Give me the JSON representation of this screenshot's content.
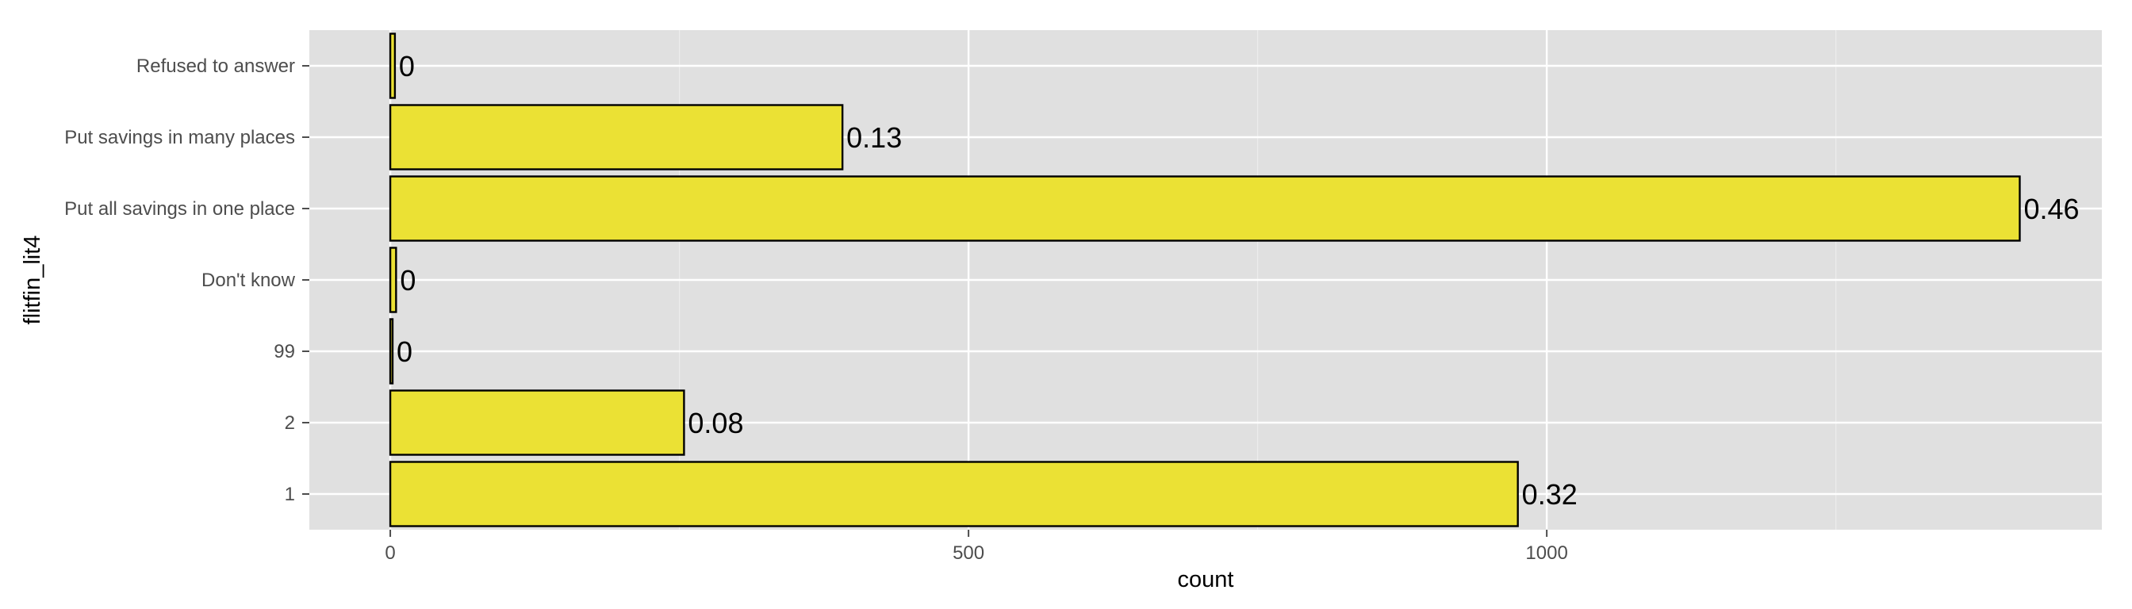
{
  "chart_data": {
    "type": "bar",
    "orientation": "horizontal",
    "xlabel": "count",
    "ylabel": "flitfin_lit4",
    "categories": [
      "1",
      "2",
      "99",
      "Don't know",
      "Put all savings in one place",
      "Put savings in many places",
      "Refused to answer"
    ],
    "values": [
      975,
      254,
      2,
      5,
      1409,
      391,
      4
    ],
    "data_labels": [
      "0.32",
      "0.08",
      "0",
      "0",
      "0.46",
      "0.13",
      "0"
    ],
    "x_ticks": [
      0,
      500,
      1000
    ],
    "x_tick_labels": [
      "0",
      "500",
      "1000"
    ],
    "xlim": [
      -70,
      1480
    ],
    "grid": true,
    "legend": "none",
    "colors": {
      "panel": "#e0e0e0",
      "grid_major": "#ffffff",
      "grid_minor": "#ececec",
      "bar_fill": "#ebe134",
      "bar_stroke": "#000000"
    }
  }
}
